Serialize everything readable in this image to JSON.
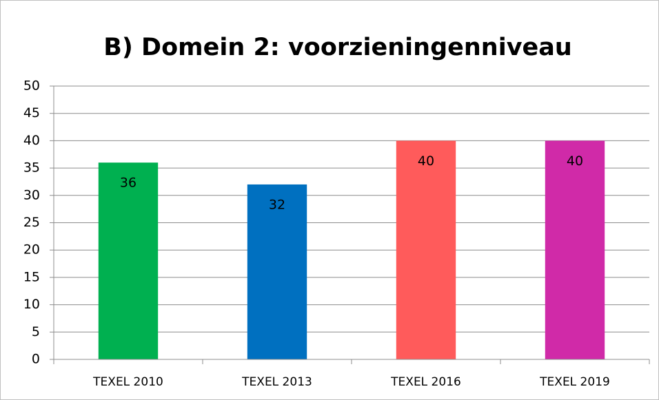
{
  "chart_data": {
    "type": "bar",
    "title": "B) Domein 2: voorzieningenniveau",
    "categories": [
      "TEXEL 2010",
      "TEXEL 2013",
      "TEXEL 2016",
      "TEXEL 2019"
    ],
    "values": [
      36,
      32,
      40,
      40
    ],
    "colors": [
      "#00b050",
      "#0070c0",
      "#ff5b5b",
      "#d02aa8"
    ],
    "ylim": [
      0,
      50
    ],
    "yticks": [
      0,
      5,
      10,
      15,
      20,
      25,
      30,
      35,
      40,
      45,
      50
    ],
    "grid": true
  }
}
